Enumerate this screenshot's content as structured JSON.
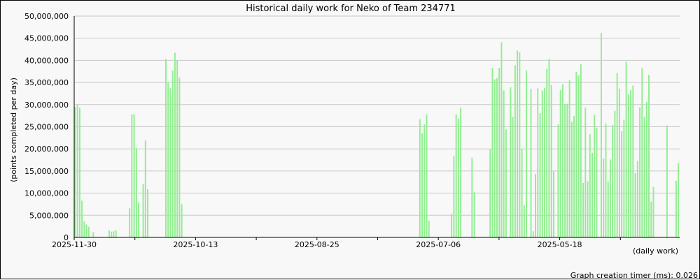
{
  "chart_data": {
    "type": "bar",
    "title": "Historical daily work for Neko of Team 234771",
    "ylabel": "(points completed per day)",
    "xlabel": "(daily work)",
    "footer": "Graph creation timer (ms): 0.026",
    "bar_color": "#90ee90",
    "grid": true,
    "ylim": [
      0,
      50000000
    ],
    "yticks": [
      0,
      5000000,
      10000000,
      15000000,
      20000000,
      25000000,
      30000000,
      35000000,
      40000000,
      45000000,
      50000000
    ],
    "ytick_labels": [
      "0",
      "5,000,000",
      "10,000,000",
      "15,000,000",
      "20,000,000",
      "25,000,000",
      "30,000,000",
      "35,000,000",
      "40,000,000",
      "45,000,000",
      "50,000,000"
    ],
    "x_order": "newest-first",
    "xticks": [
      "2025-11-30",
      "",
      "2025-10-13",
      "",
      "2025-08-25",
      "",
      "2025-07-06",
      "",
      "2025-05-18",
      ""
    ],
    "xtick_labels": [
      "2025-11-30",
      "2025-10-13",
      "2025-08-25",
      "2025-07-06",
      "2025-05-18"
    ],
    "x_labeled_ticks": [
      "2025-11-30",
      "2025-10-13",
      "2025-08-25",
      "2025-07-06",
      "2025-05-18"
    ],
    "values": [
      29500000,
      30000000,
      29300000,
      8300000,
      3600000,
      2900000,
      2400000,
      0,
      1200000,
      0,
      0,
      0,
      0,
      0,
      0,
      1600000,
      1300000,
      1400000,
      1600000,
      0,
      0,
      0,
      0,
      0,
      6600000,
      27800000,
      27800000,
      20200000,
      7900000,
      0,
      12000000,
      21900000,
      10900000,
      0,
      0,
      0,
      0,
      0,
      0,
      0,
      40300000,
      35100000,
      33700000,
      37700000,
      41700000,
      40000000,
      36100000,
      7500000,
      0,
      0,
      0,
      0,
      0,
      0,
      0,
      0,
      0,
      0,
      0,
      0,
      0,
      0,
      0,
      0,
      0,
      0,
      0,
      0,
      0,
      0,
      0,
      0,
      0,
      0,
      0,
      0,
      0,
      0,
      0,
      0,
      0,
      0,
      0,
      0,
      0,
      0,
      0,
      0,
      0,
      0,
      0,
      0,
      0,
      0,
      0,
      0,
      0,
      0,
      0,
      0,
      0,
      0,
      0,
      0,
      0,
      0,
      0,
      0,
      0,
      0,
      0,
      0,
      0,
      0,
      0,
      0,
      0,
      0,
      0,
      0,
      0,
      0,
      0,
      0,
      0,
      0,
      0,
      0,
      0,
      0,
      0,
      0,
      0,
      0,
      0,
      0,
      0,
      0,
      0,
      0,
      0,
      0,
      0,
      0,
      0,
      0,
      0,
      0,
      0,
      0,
      0,
      0,
      26700000,
      23500000,
      25500000,
      27800000,
      3800000,
      0,
      0,
      0,
      0,
      0,
      0,
      0,
      0,
      0,
      5400000,
      18400000,
      27800000,
      26800000,
      29300000,
      0,
      0,
      0,
      0,
      18000000,
      10200000,
      0,
      0,
      0,
      0,
      0,
      0,
      20000000,
      38300000,
      35700000,
      36000000,
      38300000,
      44100000,
      33200000,
      24400000,
      0,
      33900000,
      27200000,
      38900000,
      42200000,
      41800000,
      20000000,
      7300000,
      37700000,
      0,
      33600000,
      1400000,
      14300000,
      33700000,
      28100000,
      33200000,
      33700000,
      38100000,
      40400000,
      34400000,
      14900000,
      0,
      25500000,
      33300000,
      34600000,
      30100000,
      30200000,
      35500000,
      26100000,
      27400000,
      37400000,
      36600000,
      39100000,
      12300000,
      29300000,
      12700000,
      23300000,
      19100000,
      27700000,
      24800000,
      0,
      46200000,
      17800000,
      25700000,
      12700000,
      17600000,
      25400000,
      28600000,
      37100000,
      33600000,
      24000000,
      26600000,
      39700000,
      32300000,
      33300000,
      34300000,
      14500000,
      17300000,
      29400000,
      38200000,
      27200000,
      30600000,
      36700000,
      8100000,
      11400000,
      0,
      0,
      0,
      0,
      0,
      25300000,
      0,
      0,
      0,
      12800000,
      16800000
    ]
  }
}
